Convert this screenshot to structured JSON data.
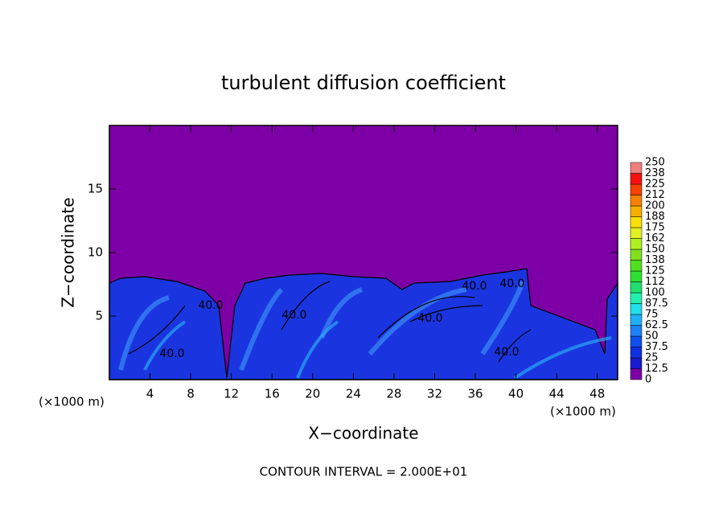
{
  "chart_data": {
    "type": "contour",
    "title": "turbulent diffusion coefficient",
    "x_label": "X−coordinate",
    "y_label": "Z−coordinate",
    "x_unit": "(×1000 m)",
    "y_unit": "(×1000 m)",
    "footer": "CONTOUR INTERVAL = 2.000E+01",
    "xlim": [
      0,
      50
    ],
    "xticks": [
      4,
      8,
      12,
      16,
      20,
      24,
      28,
      32,
      36,
      40,
      44,
      48
    ],
    "ylim": [
      0,
      20
    ],
    "yticks": [
      5,
      10,
      15
    ],
    "annotations": [
      "40.0",
      "40.0",
      "40.0",
      "40.0",
      "40.0",
      "40.0",
      "40.0"
    ],
    "colorbar": {
      "ticks": [
        0,
        12.5,
        25,
        37.5,
        50,
        62.5,
        75,
        87.5,
        100,
        112,
        125,
        138,
        150,
        162,
        175,
        188,
        200,
        212,
        225,
        238,
        250
      ],
      "colors": [
        "#7d00a6",
        "#1a1ad0",
        "#1030e0",
        "#1050f0",
        "#2080f8",
        "#20b0f8",
        "#20e0e8",
        "#20f0b0",
        "#20e070",
        "#30e030",
        "#50e020",
        "#80e020",
        "#b0f020",
        "#e0f020",
        "#f8e000",
        "#f8b000",
        "#f88000",
        "#f84000",
        "#f81010",
        "#f08080"
      ]
    }
  }
}
